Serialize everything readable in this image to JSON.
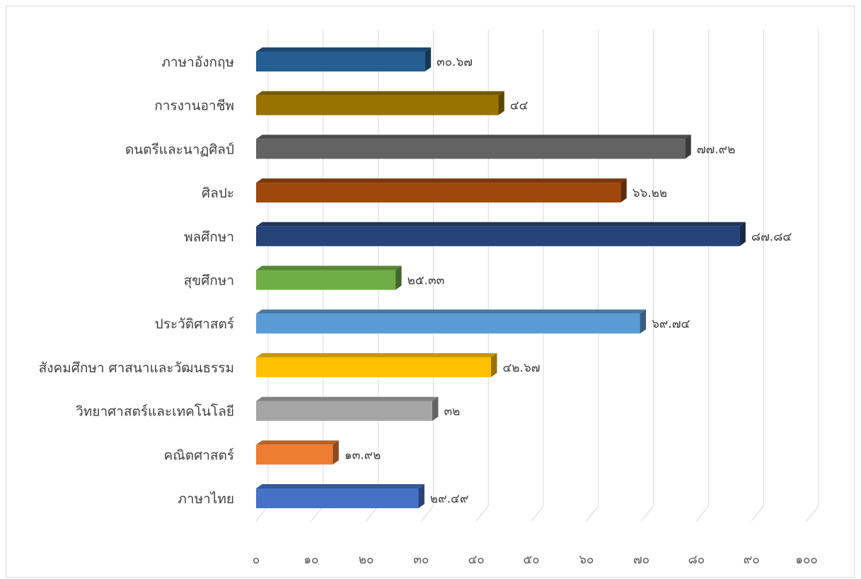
{
  "chart_data": {
    "type": "bar",
    "orientation": "horizontal",
    "style": "3d",
    "categories": [
      "ภาษาอังกฤษ",
      "การงานอาชีพ",
      "ดนตรีและนาฏศิลป์",
      "ศิลปะ",
      "พลศึกษา",
      "สุขศึกษา",
      "ประวัติศาสตร์",
      "สังคมศึกษา ศาสนาและวัฒนธรรม",
      "วิทยาศาสตร์และเทคโนโลยี",
      "คณิตศาสตร์",
      "ภาษาไทย"
    ],
    "values": [
      30.67,
      44,
      77.92,
      66.22,
      87.84,
      25.33,
      69.74,
      42.67,
      32,
      13.92,
      29.49
    ],
    "value_labels": [
      "๓๐.๖๗",
      "๔๔",
      "๗๗.๙๒",
      "๖๖.๒๒",
      "๘๗.๘๔",
      "๒๕.๓๓",
      "๖๙.๗๔",
      "๔๒.๖๗",
      "๓๒",
      "๑๓.๙๒",
      "๒๙.๔๙"
    ],
    "colors": [
      "#255e91",
      "#997300",
      "#636363",
      "#9e480e",
      "#264478",
      "#70ad47",
      "#5b9bd5",
      "#ffc000",
      "#a5a5a5",
      "#ed7d31",
      "#4472c4"
    ],
    "xlim": [
      0,
      100
    ],
    "x_ticks": [
      0,
      10,
      20,
      30,
      40,
      50,
      60,
      70,
      80,
      90,
      100
    ],
    "x_tick_labels": [
      "๐",
      "๑๐",
      "๒๐",
      "๓๐",
      "๔๐",
      "๕๐",
      "๖๐",
      "๗๐",
      "๘๐",
      "๙๐",
      "๑๐๐"
    ],
    "grid": true,
    "legend": "none",
    "title": "",
    "xlabel": "",
    "ylabel": ""
  }
}
